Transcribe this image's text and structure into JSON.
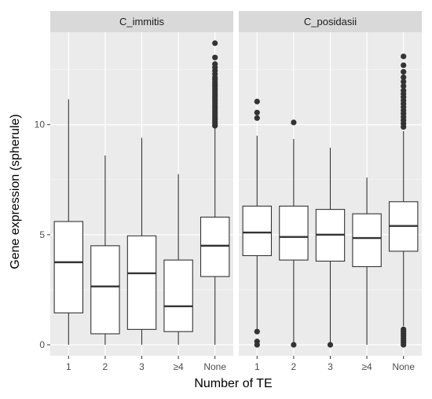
{
  "chart_data": {
    "type": "boxplot",
    "xlabel": "Number of TE",
    "ylabel": "Gene expression (spherule)",
    "categories": [
      "1",
      "2",
      "3",
      "≥4",
      "None"
    ],
    "ylim": [
      -0.5,
      14.2
    ],
    "yticks": [
      "0",
      "5",
      "10"
    ],
    "grid": true,
    "panels": [
      {
        "name": "C_immitis",
        "boxes": [
          {
            "category": "1",
            "min": 0,
            "q1": 1.45,
            "median": 3.75,
            "q3": 5.6,
            "max": 11.15,
            "outliers": []
          },
          {
            "category": "2",
            "min": 0,
            "q1": 0.5,
            "median": 2.65,
            "q3": 4.5,
            "max": 8.6,
            "outliers": []
          },
          {
            "category": "3",
            "min": 0,
            "q1": 0.7,
            "median": 3.25,
            "q3": 4.95,
            "max": 9.4,
            "outliers": []
          },
          {
            "category": "≥4",
            "min": 0,
            "q1": 0.6,
            "median": 1.75,
            "q3": 3.85,
            "max": 7.75,
            "outliers": []
          },
          {
            "category": "None",
            "min": 0,
            "q1": 3.1,
            "median": 4.5,
            "q3": 5.8,
            "max": 9.85,
            "outliers": [
              9.95,
              10.05,
              10.15,
              10.25,
              10.35,
              10.45,
              10.55,
              10.65,
              10.75,
              10.85,
              10.95,
              11.05,
              11.15,
              11.25,
              11.35,
              11.45,
              11.55,
              11.65,
              11.75,
              11.85,
              11.95,
              12.05,
              12.15,
              12.3,
              12.45,
              12.6,
              12.75,
              13.05,
              13.7
            ]
          }
        ]
      },
      {
        "name": "C_posidasii",
        "boxes": [
          {
            "category": "1",
            "min": 0.7,
            "q1": 4.05,
            "median": 5.1,
            "q3": 6.3,
            "max": 9.5,
            "outliers": [
              0.0,
              0.15,
              0.6,
              10.3,
              10.55,
              11.05
            ]
          },
          {
            "category": "2",
            "min": 0.1,
            "q1": 3.85,
            "median": 4.9,
            "q3": 6.3,
            "max": 9.35,
            "outliers": [
              0.0,
              10.1
            ]
          },
          {
            "category": "3",
            "min": 0.1,
            "q1": 3.8,
            "median": 5.0,
            "q3": 6.15,
            "max": 8.95,
            "outliers": [
              0.0
            ]
          },
          {
            "category": "≥4",
            "min": 0,
            "q1": 3.55,
            "median": 4.85,
            "q3": 5.95,
            "max": 7.6,
            "outliers": []
          },
          {
            "category": "None",
            "min": 0.85,
            "q1": 4.25,
            "median": 5.4,
            "q3": 6.5,
            "max": 9.7,
            "outliers": [
              0.0,
              0.1,
              0.2,
              0.3,
              0.4,
              0.5,
              0.6,
              0.7,
              9.9,
              10.05,
              10.2,
              10.35,
              10.5,
              10.65,
              10.8,
              10.95,
              11.1,
              11.25,
              11.4,
              11.55,
              11.75,
              11.95,
              12.15,
              12.4,
              12.7,
              13.1
            ]
          }
        ]
      }
    ]
  }
}
